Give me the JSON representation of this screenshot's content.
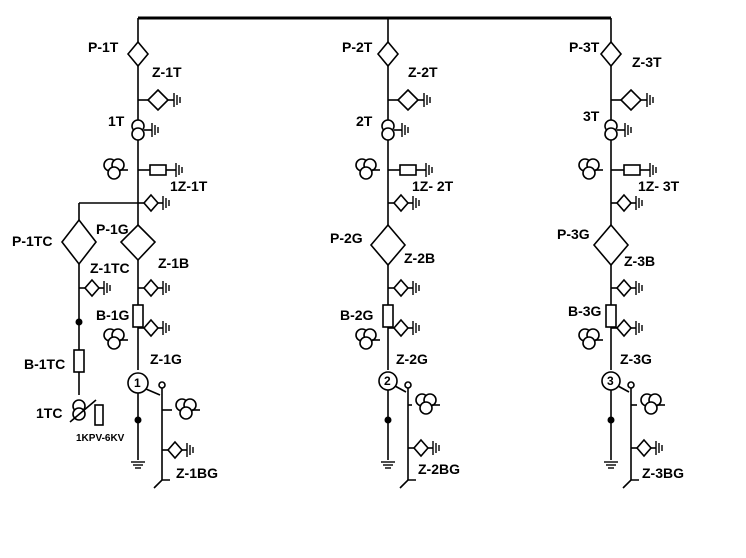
{
  "labels": {
    "p1t": "P-1T",
    "z1t": "Z-1T",
    "t1": "1T",
    "z1t1": "1Z-1T",
    "p1g": "P-1G",
    "z1b": "Z-1B",
    "b1g": "B-1G",
    "z1g": "Z-1G",
    "g1": "1",
    "z1bg": "Z-1BG",
    "p1tc": "P-1TC",
    "z1tc": "Z-1TC",
    "b1tc": "B-1TC",
    "tc1": "1TC",
    "kpv": "1KPV-6KV",
    "p2t": "P-2T",
    "z2t": "Z-2T",
    "t2": "2T",
    "z2t1": "1Z- 2T",
    "p2g": "P-2G",
    "z2b": "Z-2B",
    "b2g": "B-2G",
    "z2g": "Z-2G",
    "g2": "2",
    "z2bg": "Z-2BG",
    "p3t": "P-3T",
    "z3t": "Z-3T",
    "t3": "3T",
    "z3t1": "1Z- 3T",
    "p3g": "P-3G",
    "z3b": "Z-3B",
    "b3g": "B-3G",
    "z3g": "Z-3G",
    "g3": "3",
    "z3bg": "Z-3BG"
  }
}
